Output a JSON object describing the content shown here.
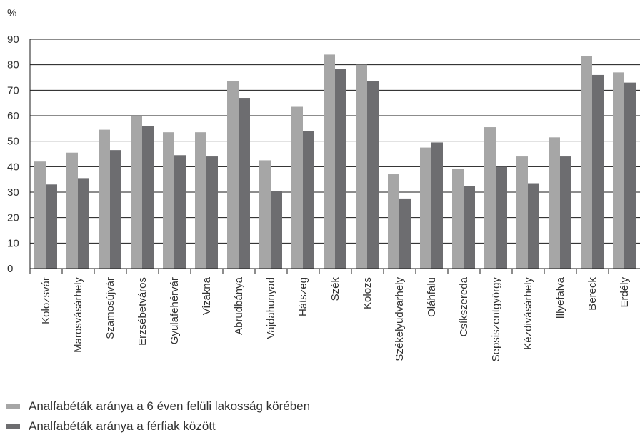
{
  "chart_data": {
    "type": "bar",
    "ylabel": "%",
    "ylim": [
      0,
      90
    ],
    "yticks": [
      0,
      10,
      20,
      30,
      40,
      50,
      60,
      70,
      80,
      90
    ],
    "grid": true,
    "legend_position": "bottom-left",
    "categories": [
      "Kolozsvár",
      "Marosvásárhely",
      "Szamosújvár",
      "Erzsébetváros",
      "Gyulafehérvár",
      "Vizakna",
      "Abrudbánya",
      "Vajdahunyad",
      "Hátszeg",
      "Szék",
      "Kolozs",
      "Székelyudvarhely",
      "Oláhfalu",
      "Csíkszereda",
      "Sepsiszentgyörgy",
      "Kézdivásárhely",
      "Illyefalva",
      "Bereck",
      "Erdély"
    ],
    "series": [
      {
        "name": "Analfabéták aránya a 6 éven felüli lakosság körében",
        "color": "#a6a6a6",
        "values": [
          42,
          45.5,
          54.5,
          60,
          53.5,
          53.5,
          73.5,
          42.5,
          63.5,
          84,
          80,
          37,
          47.5,
          39,
          55.5,
          44,
          51.5,
          83.5,
          77
        ]
      },
      {
        "name": "Analfabéták aránya a férfiak között",
        "color": "#6d6d70",
        "values": [
          33,
          35.5,
          46.5,
          56,
          44.5,
          44,
          67,
          30.5,
          54,
          78.5,
          73.5,
          27.5,
          49.5,
          32.5,
          40,
          33.5,
          44,
          76,
          73
        ]
      }
    ]
  }
}
